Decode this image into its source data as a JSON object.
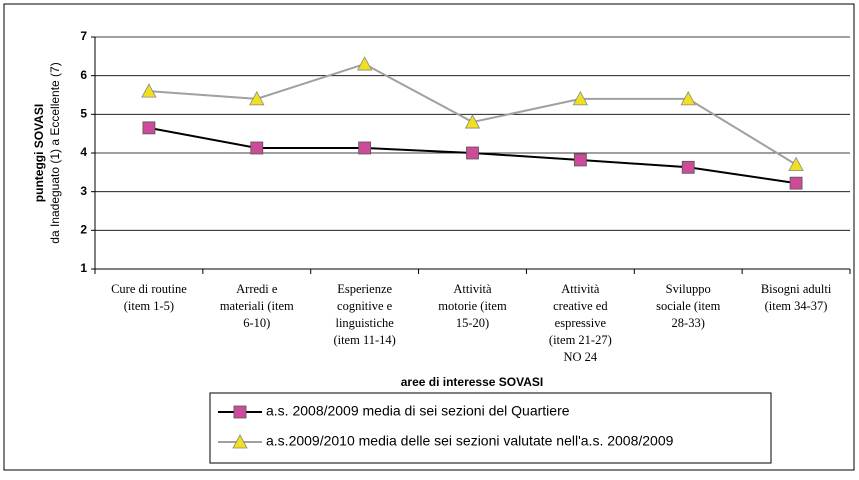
{
  "chart_data": {
    "type": "line",
    "y_label": [
      "punteggi SOVASI",
      "da Inadeguato (1) a Eccellente (7)"
    ],
    "x_label": "aree di interesse SOVASI",
    "categories": [
      [
        "Cure di routine",
        "(item 1-5)"
      ],
      [
        "Arredi e",
        "materiali (item",
        "6-10)"
      ],
      [
        "Esperienze",
        "cognitive e",
        "linguistiche",
        "(item 11-14)"
      ],
      [
        "Attività",
        "motorie (item",
        "15-20)"
      ],
      [
        "Attività",
        "creative ed",
        "espressive",
        "(item 21-27)",
        "NO 24"
      ],
      [
        "Sviluppo",
        "sociale (item",
        "28-33)"
      ],
      [
        "Bisogni adulti",
        "(item 34-37)"
      ]
    ],
    "series": [
      {
        "name": "a.s. 2008/2009 media di sei sezioni del Quartiere",
        "color": "#000000",
        "marker_color": "#cc4c99",
        "marker": "square",
        "values": [
          4.65,
          4.13,
          4.13,
          4.0,
          3.82,
          3.63,
          3.22
        ]
      },
      {
        "name": "a.s.2009/2010 media delle sei sezioni valutate nell'a.s. 2008/2009",
        "color": "#a0a0a0",
        "marker_color": "#f0e020",
        "marker": "triangle",
        "values": [
          5.6,
          5.4,
          6.3,
          4.8,
          5.4,
          5.4,
          3.7
        ]
      }
    ],
    "ylim": [
      1,
      7
    ],
    "yticks": [
      1,
      2,
      3,
      4,
      5,
      6,
      7
    ],
    "grid": true,
    "legend": "bottom"
  }
}
